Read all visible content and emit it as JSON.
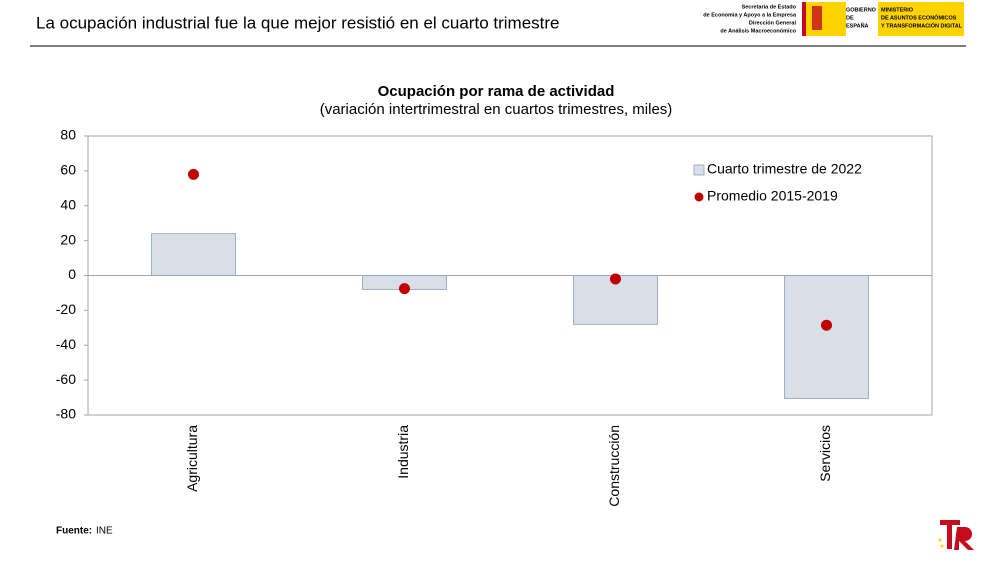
{
  "header": {
    "title": "La ocupación industrial fue la que mejor resistió en el cuarto trimestre",
    "secretary": [
      "Secretaría de Estado",
      "de Economía y Apoyo a la Empresa",
      "Dirección General",
      "de Análisis Macroeconómico"
    ],
    "government": [
      "GOBIERNO",
      "DE",
      "ESPAÑA"
    ],
    "ministry": [
      "MINISTERIO",
      "DE ASUNTOS ECONÓMICOS",
      "Y TRANSFORMACIÓN DIGITAL"
    ]
  },
  "chart_data": {
    "type": "bar",
    "title": "Ocupación por rama de actividad",
    "subtitle": "(variación intertrimestral en cuartos trimestres, miles)",
    "categories": [
      "Agricultura",
      "Industria",
      "Construcción",
      "Servicios"
    ],
    "series": [
      {
        "name": "Cuarto trimestre de 2022",
        "type": "bar",
        "color": "#d9dfe8",
        "values": [
          24,
          -8,
          -28,
          -70.5
        ]
      },
      {
        "name": "Promedio 2015-2019",
        "type": "scatter",
        "color": "#c00000",
        "values": [
          58,
          -7.5,
          -2,
          -28.5
        ]
      }
    ],
    "ylim": [
      -80,
      80
    ],
    "yticks": [
      -80,
      -60,
      -40,
      -20,
      0,
      20,
      40,
      60,
      80
    ]
  },
  "footer": {
    "source_label": "Fuente:",
    "source": "INE"
  }
}
